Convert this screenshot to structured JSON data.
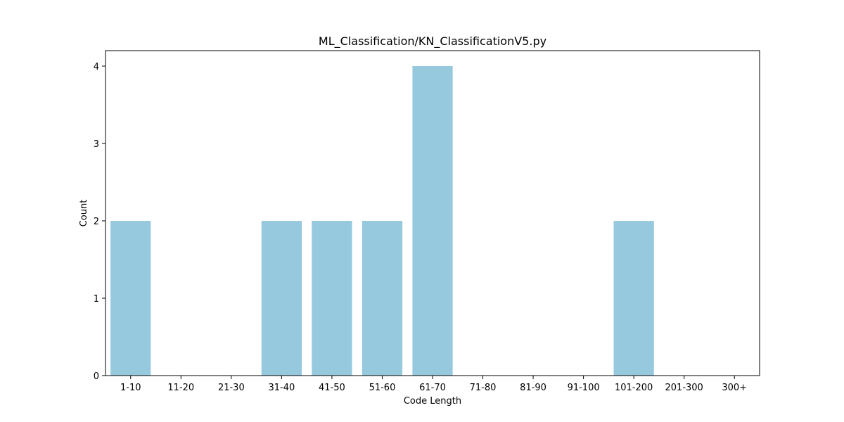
{
  "chart_data": {
    "type": "bar",
    "title": "ML_Classification/KN_ClassificationV5.py",
    "xlabel": "Code Length",
    "ylabel": "Count",
    "categories": [
      "1-10",
      "11-20",
      "21-30",
      "31-40",
      "41-50",
      "51-60",
      "61-70",
      "71-80",
      "81-90",
      "91-100",
      "101-200",
      "201-300",
      "300+"
    ],
    "values": [
      2,
      0,
      0,
      2,
      2,
      2,
      4,
      0,
      0,
      0,
      2,
      0,
      0
    ],
    "yticks": [
      "0",
      "1",
      "2",
      "3",
      "4"
    ],
    "ylim": [
      0,
      4.2
    ],
    "bar_color": "#96c9de",
    "grid": false,
    "legend": "none"
  }
}
